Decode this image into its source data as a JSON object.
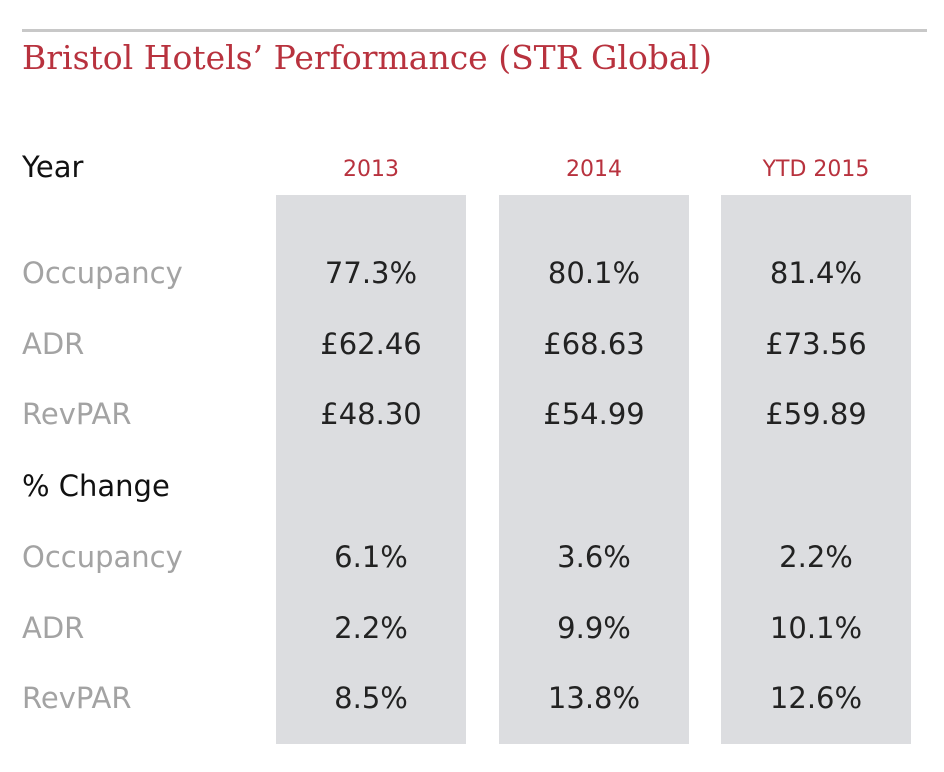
{
  "title": "Bristol Hotels’ Performance (STR Global)",
  "header": {
    "year_label": "Year",
    "columns": [
      "2013",
      "2014",
      "YTD 2015"
    ]
  },
  "section_change_label": "% Change",
  "rows": [
    {
      "label": "Occupancy",
      "values": [
        "77.3%",
        "80.1%",
        "81.4%"
      ]
    },
    {
      "label": "ADR",
      "values": [
        "£62.46",
        "£68.63",
        "£73.56"
      ]
    },
    {
      "label": "RevPAR",
      "values": [
        "£48.30",
        "£54.99",
        "£59.89"
      ]
    }
  ],
  "change_rows": [
    {
      "label": "Occupancy",
      "values": [
        "6.1%",
        "3.6%",
        "2.2%"
      ]
    },
    {
      "label": "ADR",
      "values": [
        "2.2%",
        "9.9%",
        "10.1%"
      ]
    },
    {
      "label": "RevPAR",
      "values": [
        "8.5%",
        "13.8%",
        "12.6%"
      ]
    }
  ],
  "colors": {
    "accent": "#b8323e",
    "band": "#dcdde0",
    "muted_label": "#a3a3a3",
    "dark_text": "#111111"
  }
}
